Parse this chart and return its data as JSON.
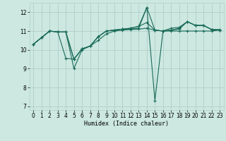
{
  "xlabel": "Humidex (Indice chaleur)",
  "xlim": [
    -0.5,
    23.5
  ],
  "ylim": [
    6.8,
    12.5
  ],
  "yticks": [
    7,
    8,
    9,
    10,
    11,
    12
  ],
  "xticks": [
    0,
    1,
    2,
    3,
    4,
    5,
    6,
    7,
    8,
    9,
    10,
    11,
    12,
    13,
    14,
    15,
    16,
    17,
    18,
    19,
    20,
    21,
    22,
    23
  ],
  "bg_color": "#cce8e0",
  "grid_color": "#b0d0c8",
  "line_color": "#1a6b5a",
  "lines": [
    [
      10.3,
      10.65,
      11.0,
      10.95,
      10.95,
      9.0,
      10.0,
      10.2,
      10.5,
      10.85,
      11.0,
      11.05,
      11.08,
      11.1,
      11.15,
      11.05,
      11.0,
      11.0,
      11.0,
      11.0,
      11.0,
      11.0,
      11.0,
      11.05
    ],
    [
      10.3,
      10.65,
      11.0,
      10.95,
      9.55,
      9.5,
      10.05,
      10.2,
      10.7,
      11.0,
      11.05,
      11.1,
      11.1,
      11.15,
      12.25,
      11.05,
      11.0,
      11.05,
      11.1,
      11.5,
      11.3,
      11.3,
      11.08,
      11.05
    ],
    [
      10.3,
      10.65,
      11.0,
      10.95,
      10.95,
      9.5,
      10.05,
      10.2,
      10.7,
      11.0,
      11.05,
      11.1,
      11.15,
      11.25,
      12.25,
      7.3,
      11.0,
      11.05,
      11.15,
      11.5,
      11.3,
      11.3,
      11.08,
      11.05
    ],
    [
      10.3,
      10.65,
      11.0,
      10.95,
      10.95,
      9.5,
      10.05,
      10.2,
      10.7,
      11.0,
      11.05,
      11.1,
      11.15,
      11.25,
      11.45,
      11.05,
      11.0,
      11.15,
      11.2,
      11.5,
      11.3,
      11.3,
      11.08,
      11.08
    ]
  ]
}
